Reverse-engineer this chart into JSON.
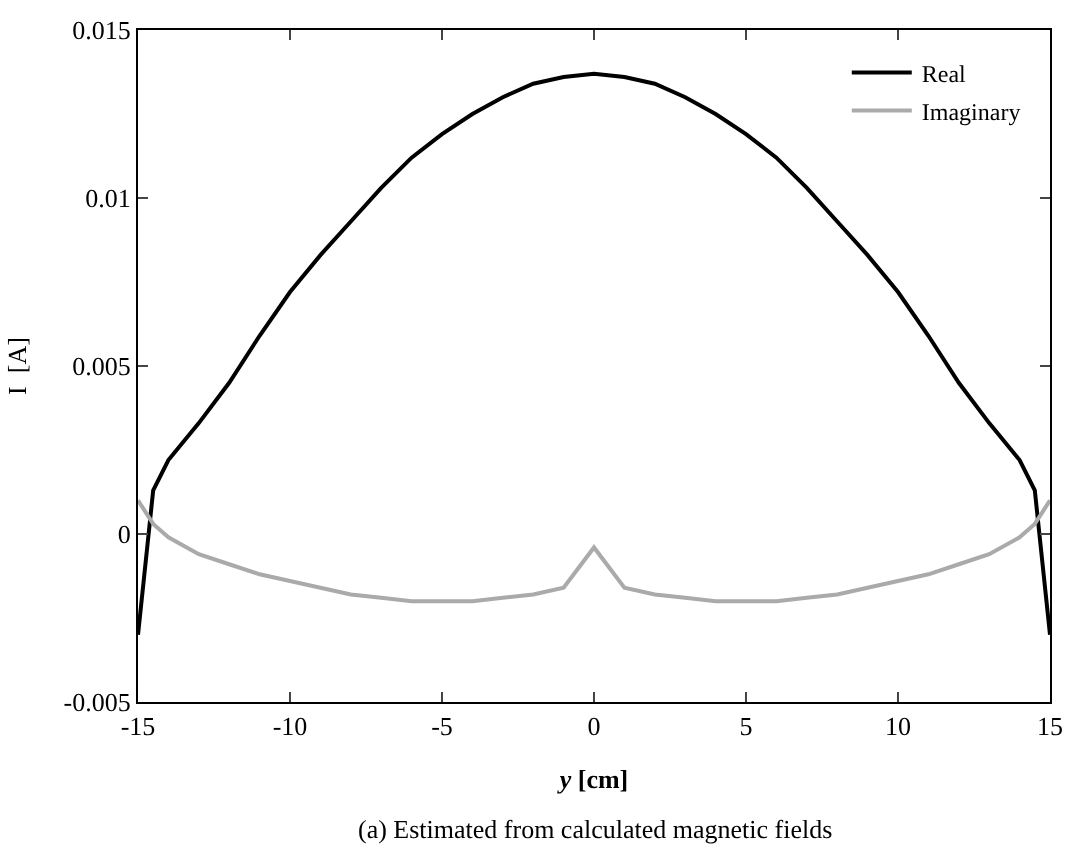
{
  "chart_data": {
    "type": "line",
    "xlabel": "y [cm]",
    "ylabel": "I  [A]",
    "annotations": [
      "(a) Estimated from calculated magnetic fields"
    ],
    "x": [
      -15,
      -14.5,
      -14,
      -13,
      -12,
      -11,
      -10,
      -9,
      -8,
      -7,
      -6,
      -5,
      -4,
      -3,
      -2,
      -1,
      0,
      1,
      2,
      3,
      4,
      5,
      6,
      7,
      8,
      9,
      10,
      11,
      12,
      13,
      14,
      14.5,
      15
    ],
    "series": [
      {
        "name": "Real",
        "color": "#000000",
        "values": [
          -0.003,
          0.0013,
          0.0022,
          0.0033,
          0.0045,
          0.0059,
          0.0072,
          0.0083,
          0.0093,
          0.0103,
          0.0112,
          0.0119,
          0.0125,
          0.013,
          0.0134,
          0.0136,
          0.0137,
          0.0136,
          0.0134,
          0.013,
          0.0125,
          0.0119,
          0.0112,
          0.0103,
          0.0093,
          0.0083,
          0.0072,
          0.0059,
          0.0045,
          0.0033,
          0.0022,
          0.0013,
          -0.003
        ]
      },
      {
        "name": "Imaginary",
        "color": "#aaaaaa",
        "values": [
          0.001,
          0.0003,
          -0.0001,
          -0.0006,
          -0.0009,
          -0.0012,
          -0.0014,
          -0.0016,
          -0.0018,
          -0.0019,
          -0.002,
          -0.002,
          -0.002,
          -0.0019,
          -0.0018,
          -0.0016,
          -0.0004,
          -0.0016,
          -0.0018,
          -0.0019,
          -0.002,
          -0.002,
          -0.002,
          -0.0019,
          -0.0018,
          -0.0016,
          -0.0014,
          -0.0012,
          -0.0009,
          -0.0006,
          -0.0001,
          0.0003,
          0.001
        ]
      }
    ],
    "xlim": [
      -15,
      15
    ],
    "xticks": [
      -15,
      -10,
      -5,
      0,
      5,
      10,
      15
    ],
    "ylim": [
      -0.005,
      0.015
    ],
    "yticks": [
      -0.005,
      0,
      0.005,
      0.01,
      0.015
    ],
    "legend": "top right",
    "marker": "none",
    "line_style": "solid"
  }
}
